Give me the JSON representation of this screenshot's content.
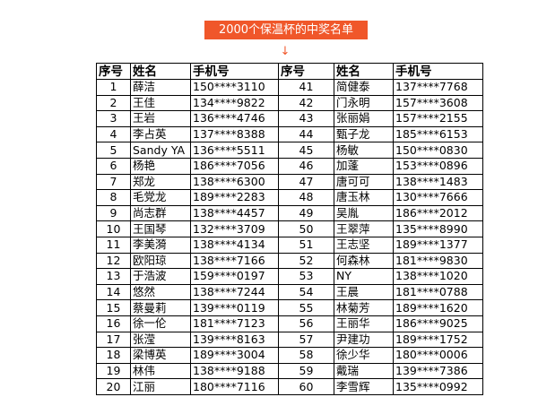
{
  "title": "2000个保温杯的中奖名单",
  "arrow": "↓",
  "table": {
    "header": [
      "序号",
      "姓名",
      "手机号",
      "序号",
      "姓名",
      "手机号"
    ],
    "rows": [
      [
        "1",
        "薛洁",
        "150****3110",
        "41",
        "简健泰",
        "137****7768"
      ],
      [
        "2",
        "王佳",
        "134****9822",
        "42",
        "门永明",
        "157****3608"
      ],
      [
        "3",
        "王岩",
        "136****4746",
        "43",
        "张丽娟",
        "157****2155"
      ],
      [
        "4",
        "李占英",
        "137****8388",
        "44",
        "甄子龙",
        "185****6153"
      ],
      [
        "5",
        "Sandy YA",
        "136****5511",
        "45",
        "杨敏",
        "150****0830"
      ],
      [
        "6",
        "杨艳",
        "186****7056",
        "46",
        "加蓬",
        "153****0896"
      ],
      [
        "7",
        "郑龙",
        "138****6300",
        "47",
        "唐可可",
        "138****1483"
      ],
      [
        "8",
        "毛党龙",
        "189****2283",
        "48",
        "唐玉林",
        "130****7666"
      ],
      [
        "9",
        "尚志群",
        "138****4457",
        "49",
        "吴胤",
        "186****2012"
      ],
      [
        "10",
        "王国琴",
        "132****3709",
        "50",
        "王翠萍",
        "135****8990"
      ],
      [
        "11",
        "李美漪",
        "138****4134",
        "51",
        "王志坚",
        "189****1377"
      ],
      [
        "12",
        "欧阳琼",
        "138****7166",
        "52",
        "何森林",
        "181****9830"
      ],
      [
        "13",
        "于浩波",
        "159****0197",
        "53",
        "NY",
        "138****1020"
      ],
      [
        "14",
        "悠然",
        "138****7244",
        "54",
        "王晨",
        "181****0788"
      ],
      [
        "15",
        "蔡曼莉",
        "139****0119",
        "55",
        "林菊芳",
        "189****1620"
      ],
      [
        "16",
        "徐一伦",
        "181****7123",
        "56",
        "王丽华",
        "186****9025"
      ],
      [
        "17",
        "张滢",
        "139****8163",
        "57",
        "尹建功",
        "189****1752"
      ],
      [
        "18",
        "梁博英",
        "189****3004",
        "58",
        "徐少华",
        "180****0006"
      ],
      [
        "19",
        "林伟",
        "138****9188",
        "59",
        "戴瑞",
        "139****7386"
      ],
      [
        "20",
        "江丽",
        "180****7116",
        "60",
        "李雪辉",
        "135****0992"
      ]
    ]
  }
}
